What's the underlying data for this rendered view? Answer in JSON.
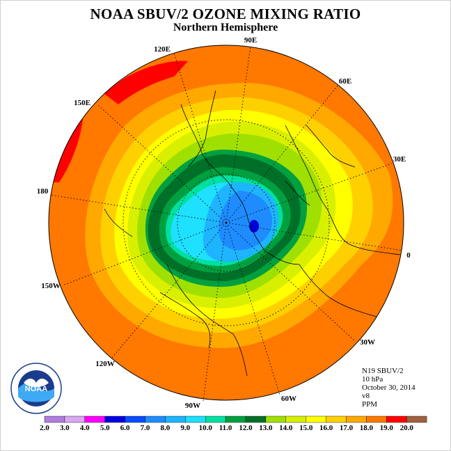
{
  "title": "NOAA SBUV/2 OZONE MIXING RATIO",
  "subtitle": "Northern Hemisphere",
  "longitude_labels": {
    "e90": "90E",
    "e120": "120E",
    "e60": "60E",
    "e150": "150E",
    "e30": "30E",
    "l180": "180",
    "l0": "0",
    "w150": "150W",
    "w30": "30W",
    "w120": "120W",
    "w60": "60W",
    "w90": "90W"
  },
  "info": {
    "satellite": "N19 SBUV/2",
    "level": "10 hPa",
    "date": "October 30, 2014",
    "version": "v8",
    "units": "PPM"
  },
  "logo": {
    "text": "NOAA",
    "ring_text": "NATIONAL OCEANIC AND ATMOSPHERIC ADMINISTRATION · U.S. DEPARTMENT OF COMMERCE"
  },
  "color_scale": {
    "ticks": [
      "2.0",
      "3.0",
      "4.0",
      "5.0",
      "6.0",
      "7.0",
      "8.0",
      "9.0",
      "10.0",
      "11.0",
      "12.0",
      "13.0",
      "14.0",
      "15.0",
      "16.0",
      "17.0",
      "18.0",
      "19.0",
      "20.0"
    ],
    "colors": [
      "#b07ce0",
      "#d8a8f0",
      "#ff00ff",
      "#0000e0",
      "#0a4cff",
      "#1e8cff",
      "#1eb4ff",
      "#1ee0ff",
      "#00e0a0",
      "#00a040",
      "#007028",
      "#a0e000",
      "#d8f000",
      "#ffff00",
      "#ffd000",
      "#ffa800",
      "#ff7800",
      "#ff0000",
      "#a06040"
    ]
  }
}
